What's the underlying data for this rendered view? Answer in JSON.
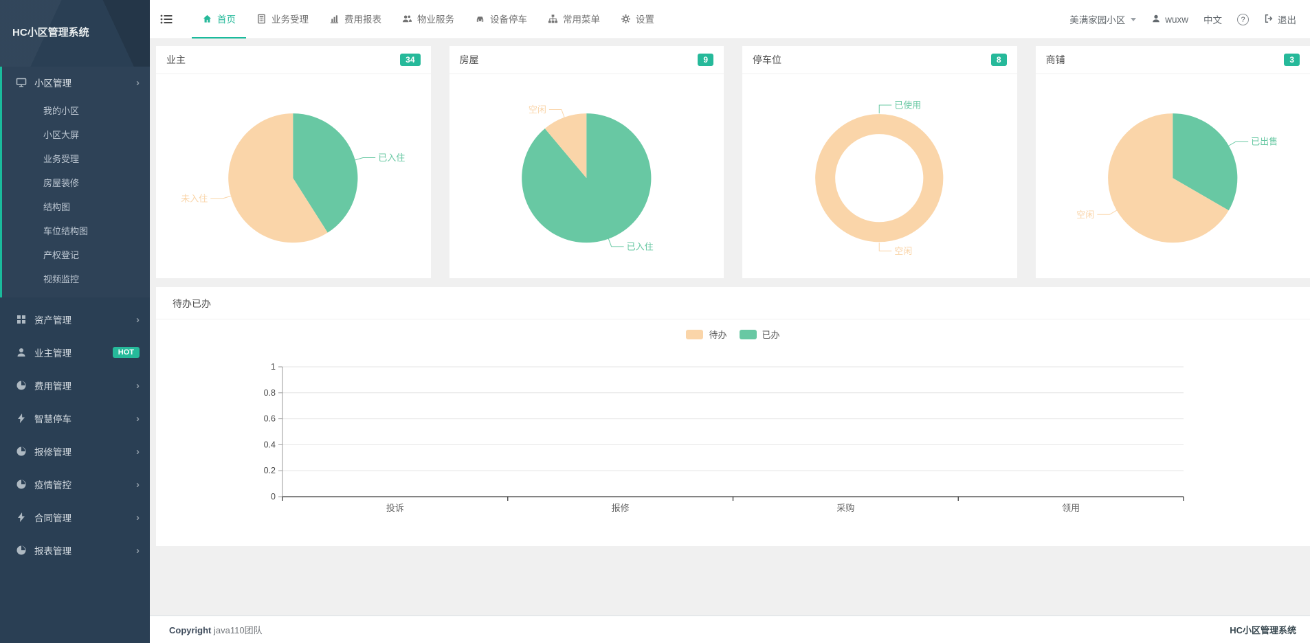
{
  "app": {
    "title": "HC小区管理系统"
  },
  "sidebar": {
    "brand": "HC小区管理系统",
    "active_group": {
      "label": "小区管理",
      "icon": "desktop-icon",
      "children": [
        {
          "label": "我的小区"
        },
        {
          "label": "小区大屏"
        },
        {
          "label": "业务受理"
        },
        {
          "label": "房屋装修"
        },
        {
          "label": "结构图"
        },
        {
          "label": "车位结构图"
        },
        {
          "label": "产权登记"
        },
        {
          "label": "视频监控"
        }
      ]
    },
    "groups": [
      {
        "label": "资产管理",
        "icon": "grid-icon",
        "chevron": "›"
      },
      {
        "label": "业主管理",
        "icon": "user-icon",
        "badge": "HOT"
      },
      {
        "label": "费用管理",
        "icon": "pie-icon",
        "chevron": "›"
      },
      {
        "label": "智慧停车",
        "icon": "bolt-icon",
        "chevron": "›"
      },
      {
        "label": "报修管理",
        "icon": "pie-icon",
        "chevron": "›"
      },
      {
        "label": "疫情管控",
        "icon": "pie-icon",
        "chevron": "›"
      },
      {
        "label": "合同管理",
        "icon": "bolt-icon",
        "chevron": "›"
      },
      {
        "label": "报表管理",
        "icon": "pie-icon",
        "chevron": "›"
      }
    ]
  },
  "topnav": {
    "tabs": [
      {
        "label": "首页",
        "icon": "home-icon",
        "active": true
      },
      {
        "label": "业务受理",
        "icon": "calculator-icon",
        "active": false
      },
      {
        "label": "费用报表",
        "icon": "bar-chart-icon",
        "active": false
      },
      {
        "label": "物业服务",
        "icon": "users-icon",
        "active": false
      },
      {
        "label": "设备停车",
        "icon": "car-icon",
        "active": false
      },
      {
        "label": "常用菜单",
        "icon": "sitemap-icon",
        "active": false
      },
      {
        "label": "设置",
        "icon": "gear-icon",
        "active": false
      }
    ],
    "right": {
      "community": "美满家园小区",
      "user": "wuxw",
      "language": "中文",
      "help": "?",
      "logout": "退出"
    }
  },
  "cards": [
    {
      "title": "业主",
      "badge": "34"
    },
    {
      "title": "房屋",
      "badge": "9"
    },
    {
      "title": "停车位",
      "badge": "8"
    },
    {
      "title": "商铺",
      "badge": "3"
    }
  ],
  "chart_data": [
    {
      "type": "pie",
      "title": "业主",
      "labels": [
        "已入住",
        "未入住"
      ],
      "values": [
        41,
        59
      ],
      "unit": "percent-estimated",
      "colors": [
        "green",
        "peach"
      ]
    },
    {
      "type": "pie",
      "title": "房屋",
      "labels": [
        "已入住",
        "空闲"
      ],
      "values": [
        8,
        1
      ],
      "colors": [
        "green",
        "peach"
      ]
    },
    {
      "type": "donut",
      "title": "停车位",
      "labels": [
        "已使用",
        "空闲"
      ],
      "values": [
        0,
        8
      ],
      "colors": [
        "green",
        "peach"
      ]
    },
    {
      "type": "pie",
      "title": "商铺",
      "labels": [
        "已出售",
        "空闲"
      ],
      "values": [
        1,
        2
      ],
      "colors": [
        "green",
        "peach"
      ]
    },
    {
      "type": "bar",
      "title": "待办已办",
      "categories": [
        "投诉",
        "报修",
        "采购",
        "领用"
      ],
      "series": [
        {
          "name": "待办",
          "color": "peach",
          "values": [
            0,
            0,
            0,
            0
          ]
        },
        {
          "name": "已办",
          "color": "green",
          "values": [
            0,
            0,
            0,
            0
          ]
        }
      ],
      "ylim": [
        0,
        1
      ],
      "yticks": [
        0,
        0.2,
        0.4,
        0.6,
        0.8,
        1
      ],
      "grid": true,
      "legend_position": "top-center"
    }
  ],
  "footer": {
    "copyright_bold": "Copyright",
    "copyright_rest": "java110团队",
    "right": "HC小区管理系统"
  },
  "colors": {
    "accent": "#1ABB9C",
    "badge": "#26B99A",
    "green": "#68C8A3",
    "peach": "#FAD5A9",
    "sidebar_bg": "#2A3F54"
  }
}
